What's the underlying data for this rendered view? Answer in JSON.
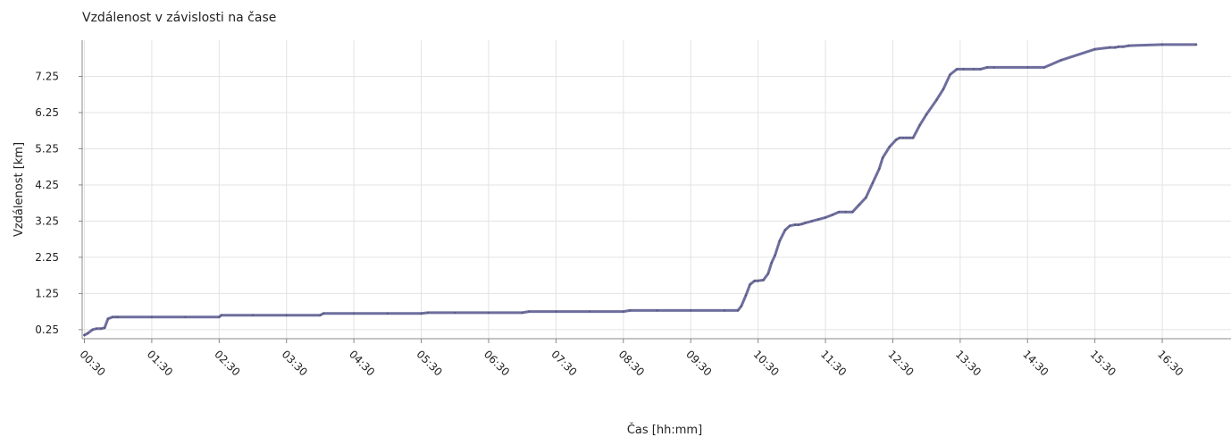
{
  "chart_data": {
    "type": "line",
    "title": "Vzdálenost v závislosti na čase",
    "xlabel": "Čas  [hh:mm]",
    "ylabel": "Vzdálenost [km]",
    "x_tick_labels": [
      "00:30",
      "01:30",
      "02:30",
      "03:30",
      "04:30",
      "05:30",
      "06:30",
      "07:30",
      "08:30",
      "09:30",
      "10:30",
      "11:30",
      "12:30",
      "13:30",
      "14:30",
      "15:30",
      "16:30"
    ],
    "y_tick_labels": [
      "0.25",
      "1.25",
      "2.25",
      "3.25",
      "4.25",
      "5.25",
      "6.25",
      "7.25"
    ],
    "y_ticks": [
      0.25,
      1.25,
      2.25,
      3.25,
      4.25,
      5.25,
      6.25,
      7.25
    ],
    "ylim": [
      0.0,
      8.25
    ],
    "xlim_hours": [
      0.5,
      17.0
    ],
    "grid": true,
    "line_color": "#6e6e9e",
    "series": [
      {
        "x_hours": [
          0.5,
          0.55,
          0.62,
          0.68,
          0.75,
          0.8,
          0.85,
          0.92,
          0.97,
          1.0,
          1.5,
          2.0,
          2.5,
          2.53,
          3.0,
          3.5,
          4.0,
          4.05,
          4.5,
          5.0,
          5.5,
          5.6,
          6.0,
          6.5,
          7.0,
          7.1,
          7.5,
          8.0,
          8.5,
          8.6,
          9.0,
          9.5,
          10.0,
          10.2,
          10.25,
          10.32,
          10.38,
          10.45,
          10.5,
          10.58,
          10.65,
          10.7,
          10.75,
          10.82,
          10.9,
          10.97,
          11.05,
          11.1,
          11.15,
          11.2,
          11.3,
          11.4,
          11.5,
          11.6,
          11.7,
          11.8,
          11.9,
          12.0,
          12.1,
          12.2,
          12.3,
          12.35,
          12.45,
          12.55,
          12.6,
          12.65,
          12.7,
          12.75,
          12.8,
          12.9,
          13.0,
          13.15,
          13.25,
          13.35,
          13.45,
          13.55,
          13.7,
          13.8,
          13.9,
          14.0,
          14.5,
          14.75,
          15.0,
          15.5,
          15.72,
          15.8,
          15.85,
          15.92,
          16.0,
          16.5,
          17.0
        ],
        "values": [
          0.1,
          0.15,
          0.25,
          0.28,
          0.28,
          0.3,
          0.55,
          0.6,
          0.6,
          0.6,
          0.6,
          0.6,
          0.6,
          0.65,
          0.65,
          0.65,
          0.65,
          0.7,
          0.7,
          0.7,
          0.7,
          0.72,
          0.72,
          0.72,
          0.72,
          0.75,
          0.75,
          0.75,
          0.75,
          0.78,
          0.78,
          0.78,
          0.78,
          0.78,
          0.9,
          1.2,
          1.5,
          1.6,
          1.6,
          1.62,
          1.8,
          2.1,
          2.3,
          2.7,
          3.0,
          3.12,
          3.15,
          3.15,
          3.17,
          3.2,
          3.25,
          3.3,
          3.35,
          3.42,
          3.5,
          3.5,
          3.5,
          3.7,
          3.9,
          4.3,
          4.7,
          5.0,
          5.3,
          5.5,
          5.55,
          5.55,
          5.55,
          5.55,
          5.55,
          5.9,
          6.2,
          6.6,
          6.9,
          7.3,
          7.45,
          7.45,
          7.45,
          7.45,
          7.5,
          7.5,
          7.5,
          7.5,
          7.7,
          8.0,
          8.05,
          8.05,
          8.07,
          8.07,
          8.1,
          8.13,
          8.13
        ]
      }
    ]
  }
}
